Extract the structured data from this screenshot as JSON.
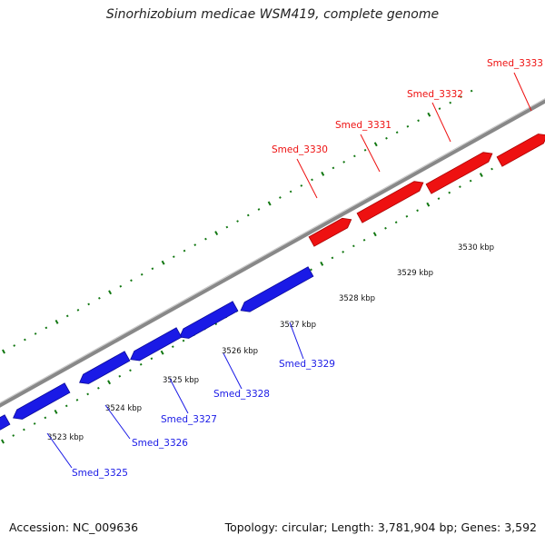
{
  "title": "Sinorhizobium medicae WSM419, complete genome",
  "footer": {
    "accession": "Accession: NC_009636",
    "summary": "Topology: circular; Length: 3,781,904 bp; Genes: 3,592"
  },
  "colors": {
    "forward_gene": "#ee1111",
    "reverse_gene": "#1a1ae6",
    "backbone": "#888888",
    "ticks": "#117711"
  },
  "tick_labels": [
    "3523 kbp",
    "3524 kbp",
    "3525 kbp",
    "3526 kbp",
    "3527 kbp",
    "3528 kbp",
    "3529 kbp",
    "3530 kbp"
  ],
  "forward_genes": [
    "Smed_3330",
    "Smed_3331",
    "Smed_3332",
    "Smed_3333"
  ],
  "reverse_genes": [
    "Smed_3325",
    "Smed_3326",
    "Smed_3327",
    "Smed_3328",
    "Smed_3329"
  ]
}
